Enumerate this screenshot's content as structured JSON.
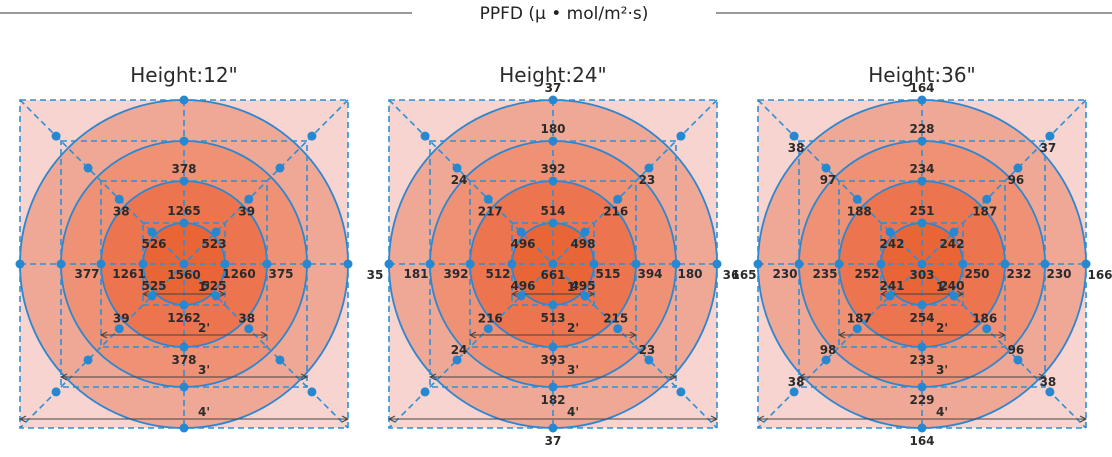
{
  "header": {
    "title": "PPFD (μ • mol/m²·s)"
  },
  "colors": {
    "outer_square": "#f7d4cf",
    "ring4": "#f0a896",
    "ring3": "#ee9174",
    "ring2": "#ec7550",
    "ring1": "#ea6535",
    "grid_line": "#2d8fd5",
    "dot": "#2688d1"
  },
  "chart_data": [
    {
      "type": "heatmap",
      "title": "Height:12\"",
      "distance_labels": [
        "1'",
        "2'",
        "3'",
        "4'"
      ],
      "points": {
        "center": "1560",
        "r1": [
          "1265",
          "523",
          "1260",
          "525",
          "1262",
          "525",
          "1261",
          "526"
        ],
        "r2": [
          "378",
          "39",
          "375",
          "38",
          "378",
          "39",
          "377",
          "38"
        ],
        "r3": [
          "",
          "",
          "",
          "",
          "",
          "",
          "",
          ""
        ],
        "r4": [
          "",
          "",
          "",
          "",
          "",
          "",
          "",
          ""
        ]
      }
    },
    {
      "type": "heatmap",
      "title": "Height:24\"",
      "distance_labels": [
        "1'",
        "2'",
        "3'",
        "4'"
      ],
      "points": {
        "center": "661",
        "r1": [
          "514",
          "498",
          "515",
          "495",
          "513",
          "496",
          "512",
          "496"
        ],
        "r2": [
          "392",
          "216",
          "394",
          "215",
          "393",
          "216",
          "392",
          "217"
        ],
        "r3": [
          "180",
          "23",
          "180",
          "23",
          "182",
          "24",
          "181",
          "24"
        ],
        "r4": [
          "37",
          "",
          "36",
          "",
          "37",
          "",
          "35",
          ""
        ]
      }
    },
    {
      "type": "heatmap",
      "title": "Height:36\"",
      "distance_labels": [
        "1'",
        "2'",
        "3'",
        "4'"
      ],
      "points": {
        "center": "303",
        "r1": [
          "251",
          "242",
          "250",
          "240",
          "254",
          "241",
          "252",
          "242"
        ],
        "r2": [
          "234",
          "187",
          "232",
          "186",
          "233",
          "187",
          "235",
          "188"
        ],
        "r3": [
          "228",
          "96",
          "230",
          "96",
          "229",
          "98",
          "230",
          "97"
        ],
        "r4": [
          "164",
          "37",
          "166",
          "38",
          "164",
          "38",
          "165",
          "38"
        ]
      }
    }
  ]
}
